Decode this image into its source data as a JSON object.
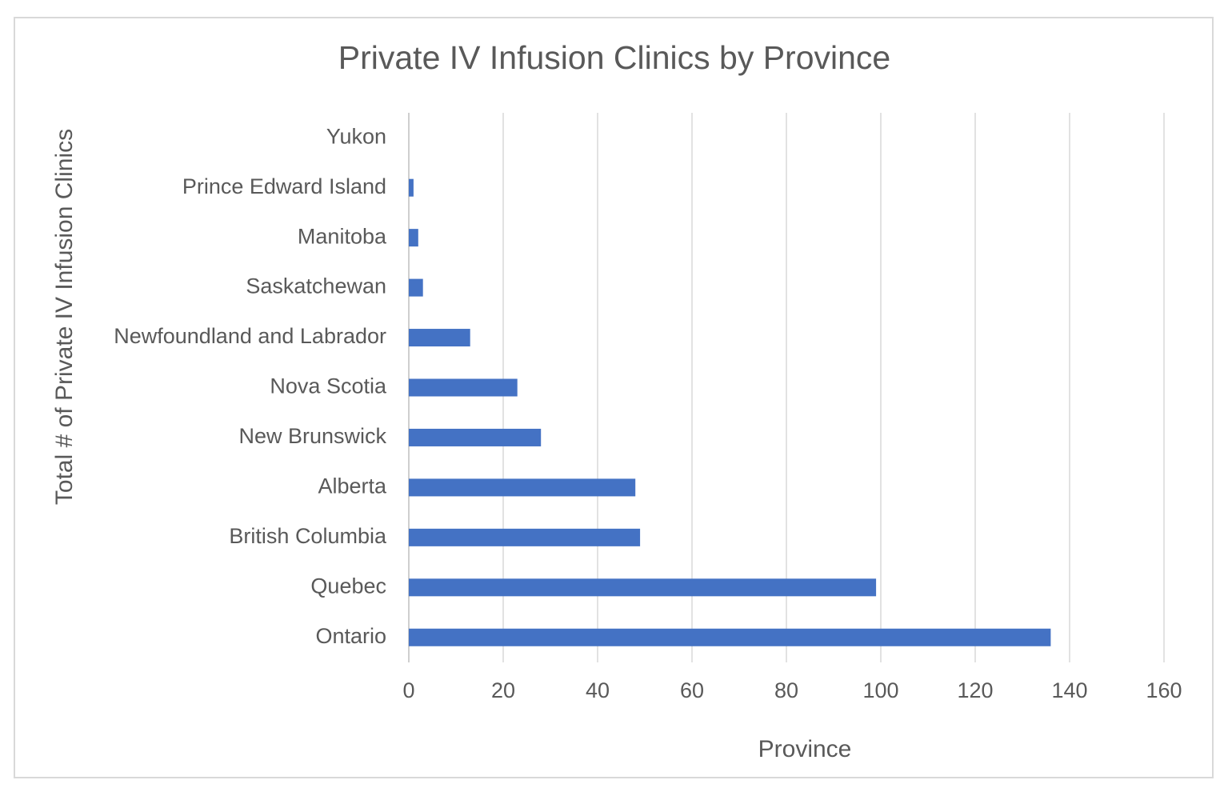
{
  "chart_data": {
    "type": "bar",
    "orientation": "horizontal",
    "title": "Private IV Infusion Clinics by Province",
    "x_label": "Province",
    "y_label": "Total # of Private IV Infusion Clinics",
    "categories": [
      "Yukon",
      "Prince Edward Island",
      "Manitoba",
      "Saskatchewan",
      "Newfoundland and Labrador",
      "Nova Scotia",
      "New Brunswick",
      "Alberta",
      "British Columbia",
      "Quebec",
      "Ontario"
    ],
    "values": [
      0,
      1,
      2,
      3,
      13,
      23,
      28,
      48,
      49,
      99,
      136
    ],
    "color": "#4472c4",
    "xlim": [
      0,
      160
    ],
    "xticks": [
      0,
      20,
      40,
      60,
      80,
      100,
      120,
      140,
      160
    ],
    "grid": true
  }
}
